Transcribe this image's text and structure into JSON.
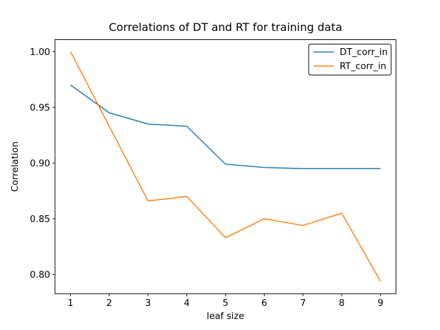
{
  "chart_data": {
    "type": "line",
    "title": "Correlations of DT and RT for training data",
    "xlabel": "leaf size",
    "ylabel": "Correlation",
    "x": [
      1,
      2,
      3,
      4,
      5,
      6,
      7,
      8,
      9
    ],
    "series": [
      {
        "name": "DT_corr_in",
        "color": "#1f77b4",
        "values": [
          0.97,
          0.945,
          0.935,
          0.933,
          0.899,
          0.896,
          0.895,
          0.895,
          0.895
        ]
      },
      {
        "name": "RT_corr_in",
        "color": "#ff7f0e",
        "values": [
          1.0,
          0.933,
          0.866,
          0.87,
          0.833,
          0.85,
          0.844,
          0.855,
          0.794
        ]
      }
    ],
    "xticks": [
      1,
      2,
      3,
      4,
      5,
      6,
      7,
      8,
      9
    ],
    "xtick_labels": [
      "1",
      "2",
      "3",
      "4",
      "5",
      "6",
      "7",
      "8",
      "9"
    ],
    "yticks": [
      0.8,
      0.85,
      0.9,
      0.95,
      1.0
    ],
    "ytick_labels": [
      "0.80",
      "0.85",
      "0.90",
      "0.95",
      "1.00"
    ],
    "xlim": [
      0.6,
      9.4
    ],
    "ylim": [
      0.7828,
      1.0107
    ],
    "grid": false,
    "legend": {
      "position": "upper-right",
      "frame": true,
      "entries": [
        "DT_corr_in",
        "RT_corr_in"
      ]
    },
    "colors": {
      "spine": "#000000",
      "background": "#ffffff",
      "legend_edge": "#000000"
    }
  }
}
